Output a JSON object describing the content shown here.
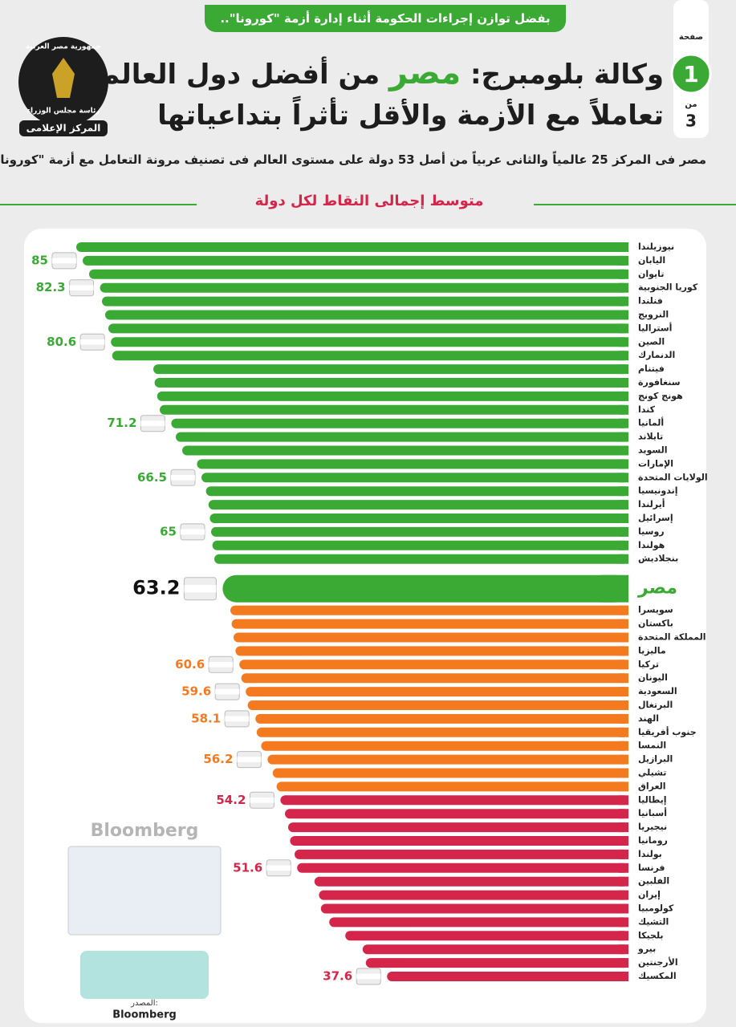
{
  "header": {
    "tag": "بفضل توازن إجراءات الحكومة أثناء إدارة أزمة \"كورونا\"..",
    "title_line1": [
      "وكالة بلومبرج:",
      "مصر",
      "من أفضل دول العالم"
    ],
    "title_line2": "تعاملاً مع الأزمة والأقل تأثراً بتداعياتها",
    "subtitle": "مصر فى المركز 25 عالمياً والثانى عربياً من أصل 53 دولة على مستوى العالم فى تصنيف مرونة التعامل مع أزمة \"كورونا\"",
    "logo": [
      "جمهورية مصر العربية",
      "رئاسة مجلس الوزراء",
      "المركز الإعلامى"
    ],
    "page": {
      "label": "صفحة",
      "number": "1",
      "of": "من",
      "total": "3"
    }
  },
  "chart_data": {
    "type": "hbar",
    "title": "متوسط إجمالى النقاط لكل دولة",
    "categories": [
      "نيوزيلندا",
      "اليابان",
      "تايوان",
      "كوريا الجنوبية",
      "فنلندا",
      "النرويج",
      "أستراليا",
      "الصين",
      "الدنمارك",
      "فيتنام",
      "سنغافورة",
      "هونج كونج",
      "كندا",
      "ألمانيا",
      "تايلاند",
      "السويد",
      "الإمارات",
      "الولايات المتحدة",
      "إندونيسيا",
      "أيرلندا",
      "إسرائيل",
      "روسيا",
      "هولندا",
      "بنجلاديش",
      "مصر",
      "سويسرا",
      "باكستان",
      "المملكة المتحدة",
      "ماليزيا",
      "تركيا",
      "اليونان",
      "السعودية",
      "البرتغال",
      "الهند",
      "جنوب أفريقيا",
      "النمسا",
      "البرازيل",
      "تشيلي",
      "العراق",
      "إيطاليا",
      "أسبانيا",
      "نيجيريا",
      "رومانيا",
      "بولندا",
      "فرنسا",
      "الفلبين",
      "إيران",
      "كولومبيا",
      "التشيك",
      "بلجيكا",
      "بيرو",
      "الأرجنتين",
      "المكسيك"
    ],
    "values": [
      86,
      85,
      84,
      82.3,
      82,
      81.5,
      81,
      80.6,
      80.4,
      74,
      73.8,
      73.4,
      73,
      71.2,
      70.5,
      69.5,
      67.2,
      66.5,
      65.8,
      65.4,
      65.2,
      65,
      64.8,
      64.5,
      63.2,
      62,
      61.8,
      61.5,
      61.2,
      60.6,
      60.3,
      59.6,
      59.3,
      58.1,
      57.9,
      57.2,
      56.2,
      55.4,
      54.8,
      54.2,
      53.5,
      53,
      52.7,
      52,
      51.6,
      48.9,
      48.2,
      47.9,
      46.6,
      44.1,
      41.4,
      40.9,
      37.6
    ],
    "value_labels": [
      null,
      "85",
      null,
      "82.3",
      null,
      null,
      null,
      "80.6",
      null,
      null,
      null,
      null,
      null,
      "71.2",
      null,
      null,
      null,
      "66.5",
      null,
      null,
      null,
      "65",
      null,
      null,
      "63.2",
      null,
      null,
      null,
      null,
      "60.6",
      null,
      "59.6",
      null,
      "58.1",
      null,
      null,
      "56.2",
      null,
      null,
      "54.2",
      null,
      null,
      null,
      null,
      "51.6",
      null,
      null,
      null,
      null,
      null,
      null,
      null,
      "37.6"
    ],
    "colors": [
      "#3aaa35",
      "#3aaa35",
      "#3aaa35",
      "#3aaa35",
      "#3aaa35",
      "#3aaa35",
      "#3aaa35",
      "#3aaa35",
      "#3aaa35",
      "#3aaa35",
      "#3aaa35",
      "#3aaa35",
      "#3aaa35",
      "#3aaa35",
      "#3aaa35",
      "#3aaa35",
      "#3aaa35",
      "#3aaa35",
      "#3aaa35",
      "#3aaa35",
      "#3aaa35",
      "#3aaa35",
      "#3aaa35",
      "#3aaa35",
      "#3aaa35",
      "#f47a20",
      "#f47a20",
      "#f47a20",
      "#f47a20",
      "#f47a20",
      "#f47a20",
      "#f47a20",
      "#f47a20",
      "#f47a20",
      "#f47a20",
      "#f47a20",
      "#f47a20",
      "#f47a20",
      "#f47a20",
      "#d4264a",
      "#d4264a",
      "#d4264a",
      "#d4264a",
      "#d4264a",
      "#d4264a",
      "#d4264a",
      "#d4264a",
      "#d4264a",
      "#d4264a",
      "#d4264a",
      "#d4264a",
      "#d4264a",
      "#d4264a"
    ],
    "highlight_index": 24,
    "source_logo": "Bloomberg",
    "source_label": "المصدر:",
    "source": "Bloomberg"
  }
}
